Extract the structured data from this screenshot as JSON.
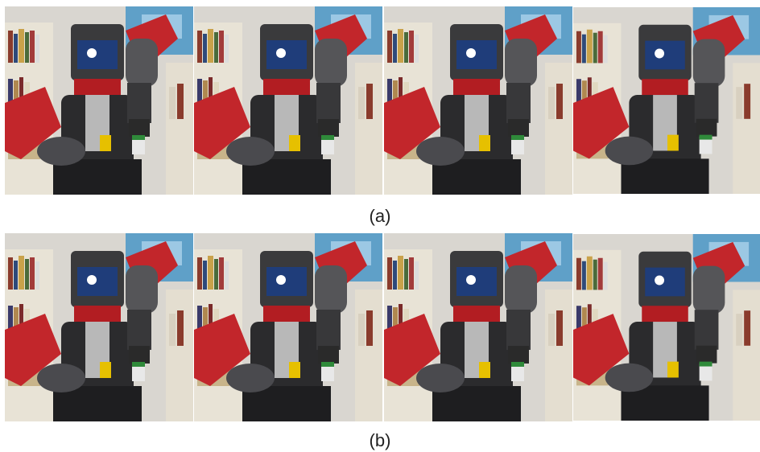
{
  "rows": [
    {
      "caption": "(a)"
    },
    {
      "caption": "(b)"
    }
  ]
}
